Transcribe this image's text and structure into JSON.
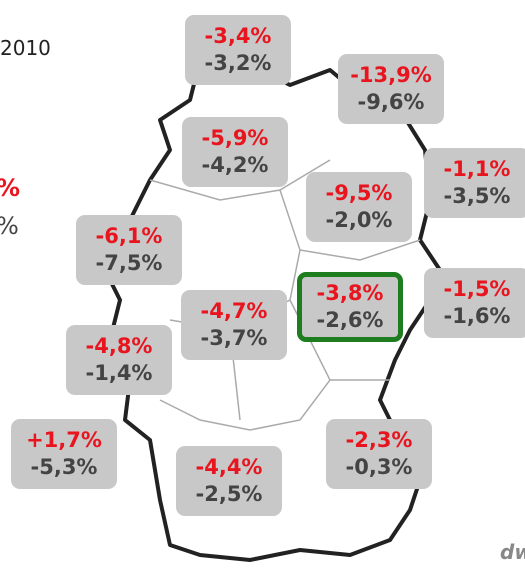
{
  "legend": {
    "year": "2010",
    "primary_unit": "%",
    "secondary_unit": "%"
  },
  "logo": "dw",
  "regions": [
    {
      "primary": "-3,4%",
      "secondary": "-3,2%"
    },
    {
      "primary": "-13,9%",
      "secondary": "-9,6%"
    },
    {
      "primary": "-5,9%",
      "secondary": "-4,2%"
    },
    {
      "primary": "-1,1%",
      "secondary": "-3,5%"
    },
    {
      "primary": "-9,5%",
      "secondary": "-2,0%"
    },
    {
      "primary": "-6,1%",
      "secondary": "-7,5%"
    },
    {
      "primary": "-3,8%",
      "secondary": "-2,6%"
    },
    {
      "primary": "-1,5%",
      "secondary": "-1,6%"
    },
    {
      "primary": "-4,7%",
      "secondary": "-3,7%"
    },
    {
      "primary": "-4,8%",
      "secondary": "-1,4%"
    },
    {
      "primary": "+1,7%",
      "secondary": "-5,3%"
    },
    {
      "primary": "-2,3%",
      "secondary": "-0,3%"
    },
    {
      "primary": "-4,4%",
      "secondary": "-2,5%"
    }
  ]
}
